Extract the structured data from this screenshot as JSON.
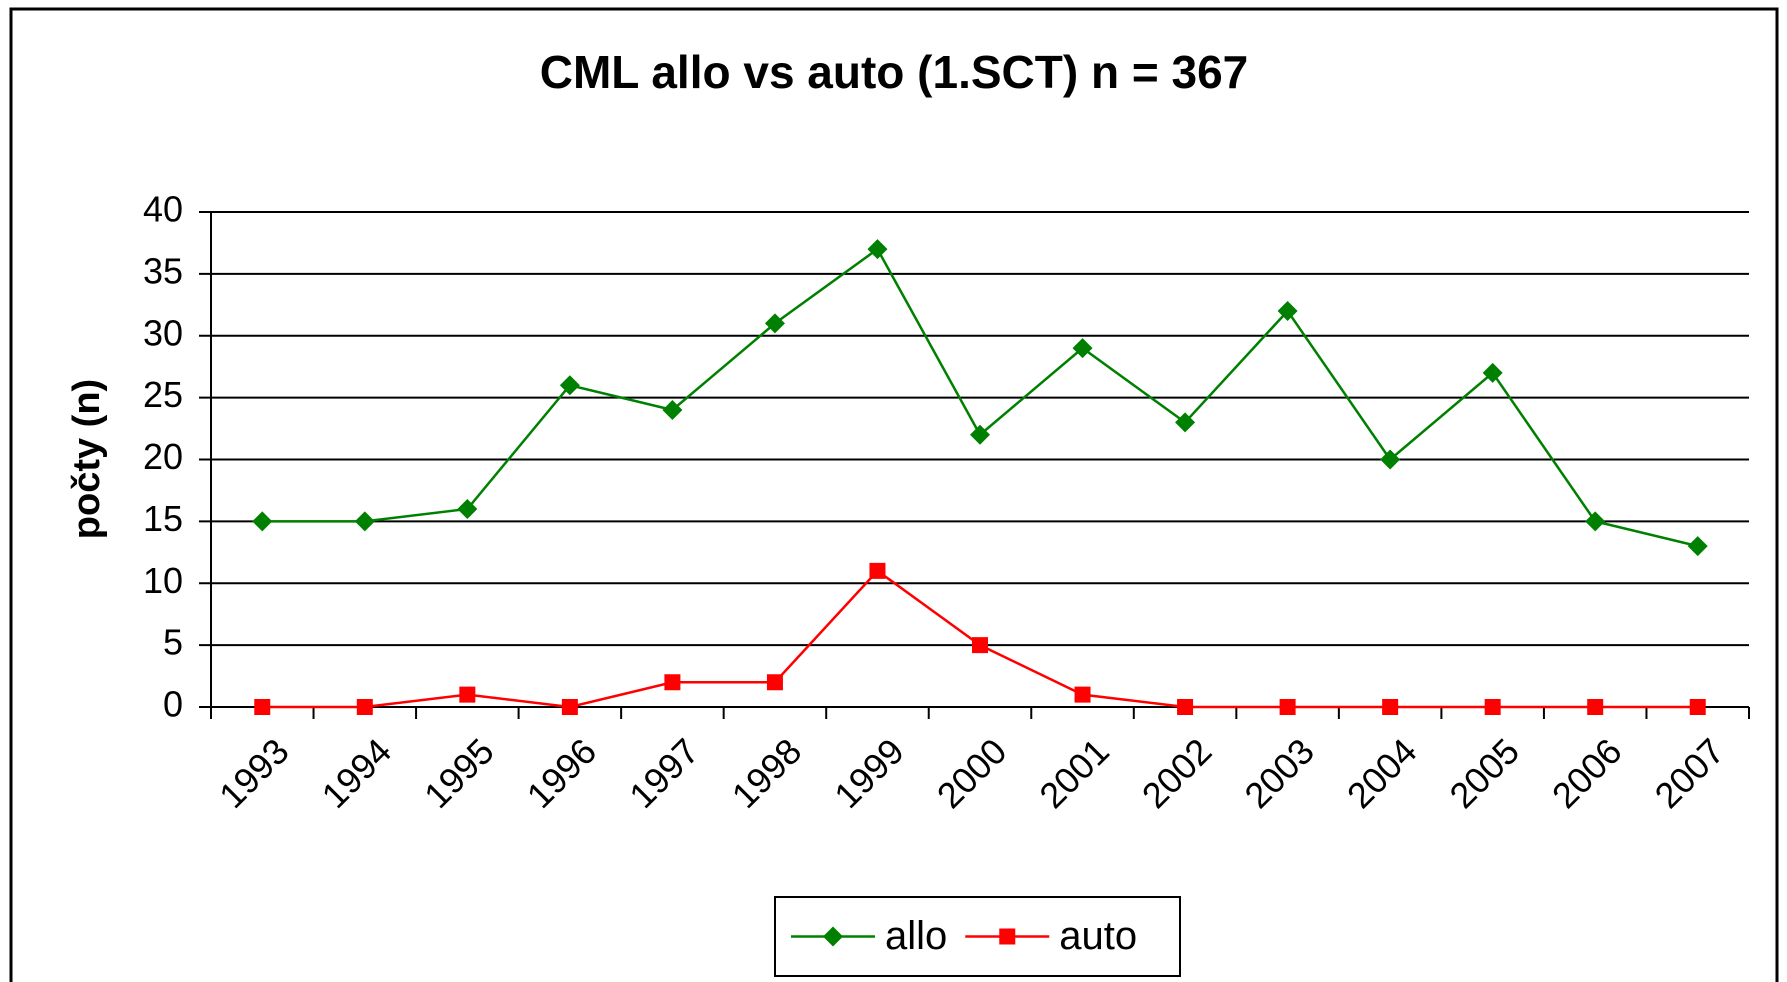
{
  "chart_data": {
    "type": "line",
    "title": "CML allo vs auto  (1.SCT) n = 367",
    "y_label": "počty (n)",
    "categories": [
      "1993",
      "1994",
      "1995",
      "1996",
      "1997",
      "1998",
      "1999",
      "2000",
      "2001",
      "2002",
      "2003",
      "2004",
      "2005",
      "2006",
      "2007"
    ],
    "series": [
      {
        "name": "allo",
        "color": "#008000",
        "marker": "diamond",
        "values": [
          15,
          15,
          16,
          26,
          24,
          31,
          37,
          22,
          29,
          23,
          32,
          20,
          27,
          15,
          13
        ]
      },
      {
        "name": "auto",
        "color": "#ff0000",
        "marker": "square",
        "values": [
          0,
          0,
          1,
          0,
          2,
          2,
          11,
          5,
          1,
          0,
          0,
          0,
          0,
          0,
          0
        ]
      }
    ],
    "ylim": [
      0,
      40
    ],
    "yticks": [
      0,
      5,
      10,
      15,
      20,
      25,
      30,
      35,
      40
    ],
    "grid": true,
    "legend": "bottom"
  }
}
